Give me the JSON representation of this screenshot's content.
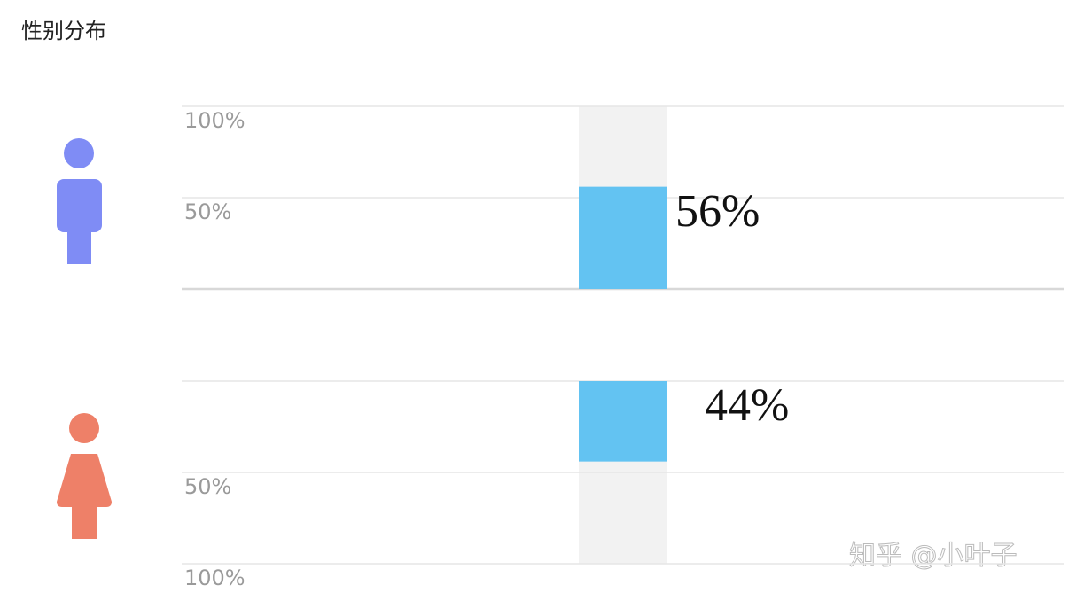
{
  "title": "性别分布",
  "watermark": "知乎 @小叶子",
  "chart_data": [
    {
      "type": "bar",
      "values": [
        56
      ],
      "value_labels": [
        "56%"
      ],
      "color": "#63c3f2",
      "track_color": "#f2f2f2",
      "ylim": [
        0,
        100
      ],
      "yticks": [
        {
          "value": 50,
          "label": "50%"
        },
        {
          "value": 100,
          "label": "100%"
        }
      ],
      "reversed": false,
      "grid": true
    },
    {
      "type": "bar",
      "values": [
        44
      ],
      "value_labels": [
        "44%"
      ],
      "color": "#63c3f2",
      "track_color": "#f2f2f2",
      "ylim": [
        0,
        100
      ],
      "yticks": [
        {
          "value": 50,
          "label": "50%"
        },
        {
          "value": 100,
          "label": "100%"
        }
      ],
      "reversed": true,
      "grid": true
    }
  ]
}
